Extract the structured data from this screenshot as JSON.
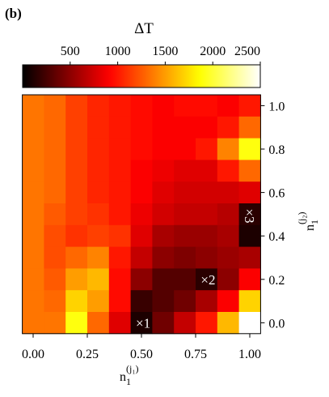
{
  "chart_data": {
    "type": "heatmap",
    "panel_label": "(b)",
    "colorbar_label": "ΔT",
    "colormap": "hot",
    "clim": [
      0,
      2500
    ],
    "cticks": [
      500,
      1000,
      1500,
      2000,
      2500
    ],
    "xlabel": {
      "base": "n",
      "sub": "1",
      "sup": "(j₁)"
    },
    "ylabel": {
      "base": "n",
      "sub": "1",
      "sup": "(j₂)"
    },
    "x": [
      0.0,
      0.1,
      0.2,
      0.3,
      0.4,
      0.5,
      0.6,
      0.7,
      0.8,
      0.9,
      1.0
    ],
    "y": [
      1.0,
      0.9,
      0.8,
      0.7,
      0.6,
      0.5,
      0.4,
      0.3,
      0.2,
      0.1,
      0.0
    ],
    "z": [
      [
        1350,
        1300,
        1150,
        1050,
        1000,
        950,
        900,
        950,
        950,
        900,
        1000
      ],
      [
        1350,
        1300,
        1150,
        1050,
        1000,
        950,
        900,
        900,
        900,
        1000,
        1300
      ],
      [
        1350,
        1300,
        1150,
        1050,
        1000,
        950,
        900,
        900,
        1000,
        1400,
        1900
      ],
      [
        1350,
        1300,
        1150,
        1050,
        1000,
        900,
        850,
        800,
        800,
        1000,
        1300
      ],
      [
        1350,
        1300,
        1150,
        1050,
        1000,
        900,
        800,
        750,
        750,
        750,
        800
      ],
      [
        1350,
        1250,
        1150,
        1100,
        1000,
        850,
        750,
        700,
        700,
        650,
        150
      ],
      [
        1350,
        1200,
        1100,
        1150,
        1100,
        800,
        600,
        550,
        550,
        600,
        100
      ],
      [
        1350,
        1200,
        1300,
        1400,
        1000,
        700,
        500,
        450,
        500,
        550,
        600
      ],
      [
        1350,
        1250,
        1500,
        1600,
        950,
        500,
        300,
        300,
        150,
        500,
        900
      ],
      [
        1350,
        1300,
        1700,
        1500,
        950,
        200,
        300,
        400,
        600,
        900,
        1700
      ],
      [
        1350,
        1350,
        1900,
        1300,
        800,
        100,
        400,
        700,
        1000,
        1600,
        2500
      ]
    ],
    "xlim": [
      -0.05,
      1.05
    ],
    "ylim": [
      -0.05,
      1.05
    ],
    "xticks": [
      {
        "value": 0,
        "label": "0.00"
      },
      {
        "value": 0.25,
        "label": "0.25"
      },
      {
        "value": 0.5,
        "label": "0.50"
      },
      {
        "value": 0.75,
        "label": "0.75"
      },
      {
        "value": 1,
        "label": "1.00"
      }
    ],
    "yticks": [
      {
        "value": 0,
        "label": "0.0"
      },
      0.2,
      0.4,
      0.6,
      0.8,
      {
        "value": 1,
        "label": "1.0"
      }
    ],
    "annotations": [
      {
        "text": "×1",
        "x": 0.5,
        "y": 0.0,
        "rotation": 0
      },
      {
        "text": "×2",
        "x": 0.8,
        "y": 0.2,
        "rotation": 0
      },
      {
        "text": "×3",
        "x": 1.0,
        "y": 0.5,
        "rotation": 90
      }
    ]
  }
}
